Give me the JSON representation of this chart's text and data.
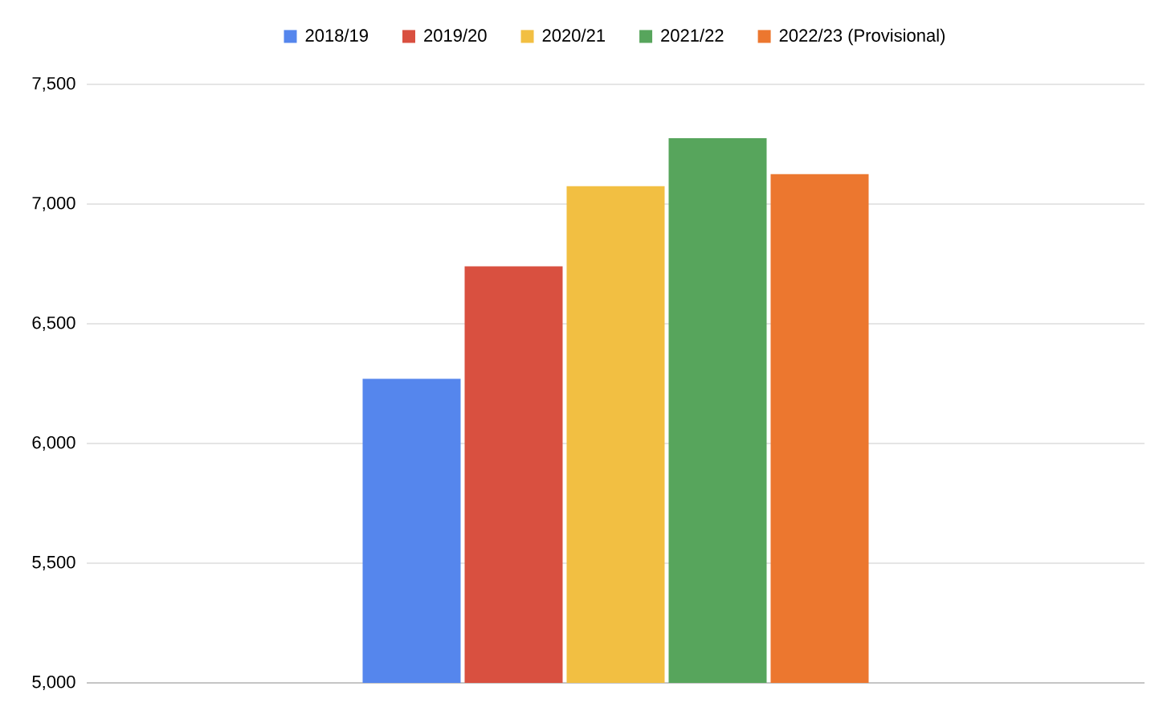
{
  "chart_data": {
    "type": "bar",
    "categories": [
      null
    ],
    "series": [
      {
        "name": "2018/19",
        "color": "#5586ed",
        "values": [
          6270
        ]
      },
      {
        "name": "2019/20",
        "color": "#d95040",
        "values": [
          6740
        ]
      },
      {
        "name": "2020/21",
        "color": "#f2bf42",
        "values": [
          7075
        ]
      },
      {
        "name": "2021/22",
        "color": "#57a55c",
        "values": [
          7275
        ]
      },
      {
        "name": "2022/23 (Provisional)",
        "color": "#ec772f",
        "values": [
          7125
        ]
      }
    ],
    "ylim": [
      5000,
      7500
    ],
    "yticks": [
      {
        "value": 5000,
        "label": "5,000"
      },
      {
        "value": 5500,
        "label": "5,500"
      },
      {
        "value": 6000,
        "label": "6,000"
      },
      {
        "value": 6500,
        "label": "6,500"
      },
      {
        "value": 7000,
        "label": "7,000"
      },
      {
        "value": 7500,
        "label": "7,500"
      }
    ],
    "grid": "y",
    "legend": "top"
  }
}
